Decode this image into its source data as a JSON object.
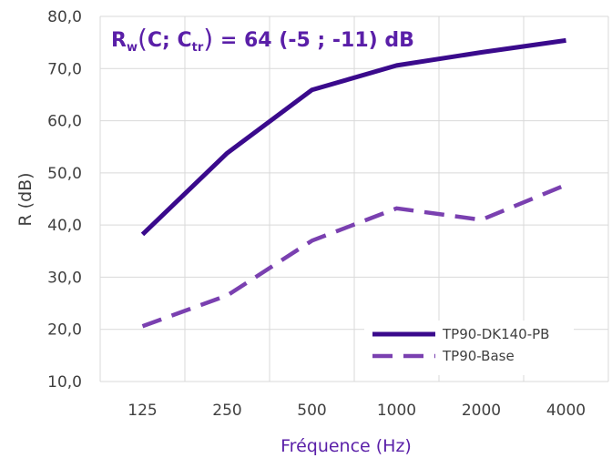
{
  "chart_data": {
    "type": "line",
    "categories": [
      "125",
      "250",
      "500",
      "1000",
      "2000",
      "4000"
    ],
    "series": [
      {
        "name": "TP90-DK140-PB",
        "values": [
          38.2,
          53.8,
          65.9,
          70.6,
          73.1,
          75.4
        ],
        "color": "#3a0a8c",
        "dash": "solid"
      },
      {
        "name": "TP90-Base",
        "values": [
          20.6,
          26.5,
          37.0,
          43.2,
          41.0,
          47.7
        ],
        "color": "#7a40b0",
        "dash": "dashed"
      }
    ],
    "ylabel": "R (dB)",
    "xlabel": "Fréquence (Hz)",
    "ylim": [
      10,
      80
    ],
    "ytick_step": 10,
    "ytick_labels": [
      "10,0",
      "20,0",
      "30,0",
      "40,0",
      "50,0",
      "60,0",
      "70,0",
      "80,0"
    ],
    "grid": true,
    "legend_position": "bottom-right",
    "annotation": {
      "R": "R",
      "w": "w",
      "open": "(",
      "C": "C; C",
      "tr": "tr",
      "close": ")",
      "eq": " = 64 ",
      "values": "(-5 ; -11)",
      "unit": " dB",
      "color": "#5a1fa8"
    }
  }
}
